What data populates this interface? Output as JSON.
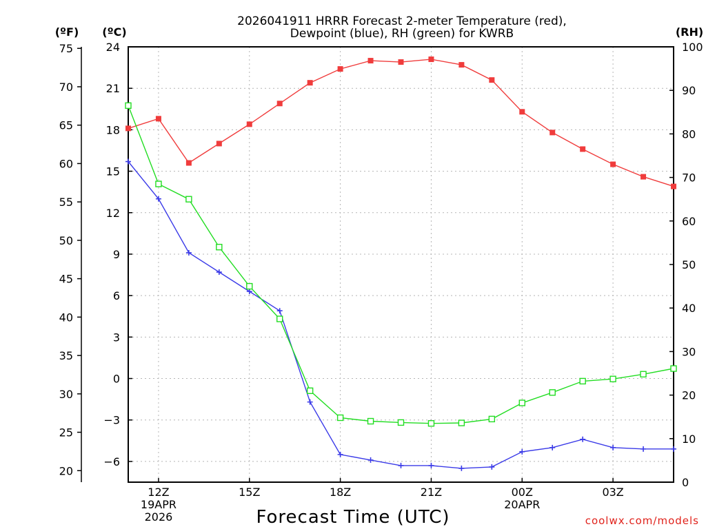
{
  "chart_data": {
    "type": "line",
    "title_line1": "2026041911 HRRR Forecast 2-meter Temperature (red),",
    "title_line2": "Dewpoint (blue), RH (green) for KWRB",
    "axis_units": {
      "f": "(ºF)",
      "c": "(ºC)",
      "rh": "(RH)"
    },
    "xlabel": "Forecast Time (UTC)",
    "credit": "coolwx.com/models",
    "x_hours": [
      11,
      12,
      13,
      14,
      15,
      16,
      17,
      18,
      19,
      20,
      21,
      22,
      23,
      24,
      25,
      26,
      27,
      28,
      29
    ],
    "xlim": [
      11,
      29
    ],
    "x_ticks": [
      {
        "hour": 12,
        "lines": [
          "12Z",
          "19APR",
          "2026"
        ]
      },
      {
        "hour": 15,
        "lines": [
          "15Z"
        ]
      },
      {
        "hour": 18,
        "lines": [
          "18Z"
        ]
      },
      {
        "hour": 21,
        "lines": [
          "21Z"
        ]
      },
      {
        "hour": 24,
        "lines": [
          "00Z",
          "20APR"
        ]
      },
      {
        "hour": 27,
        "lines": [
          "03Z"
        ]
      }
    ],
    "celsius_axis": {
      "ylim": [
        -7.5,
        24
      ],
      "ticks": [
        24,
        21,
        18,
        15,
        12,
        9,
        6,
        3,
        0,
        -3,
        -6
      ]
    },
    "fahrenheit_axis": {
      "ticks": [
        75,
        70,
        65,
        60,
        55,
        50,
        45,
        40,
        35,
        30,
        25,
        20
      ]
    },
    "rh_axis": {
      "ylim": [
        0,
        100
      ],
      "ticks": [
        100,
        90,
        80,
        70,
        60,
        50,
        40,
        30,
        20,
        10,
        0
      ]
    },
    "series": [
      {
        "name": "Temperature",
        "unit": "C",
        "color": "#f03c3c",
        "marker": "filled-square",
        "values": [
          18.1,
          18.8,
          15.6,
          17.0,
          18.4,
          19.9,
          21.4,
          22.4,
          23.0,
          22.9,
          23.1,
          22.7,
          21.6,
          19.3,
          17.8,
          16.6,
          15.5,
          14.6,
          13.9
        ]
      },
      {
        "name": "Dewpoint",
        "unit": "C",
        "color": "#3a3ae8",
        "marker": "plus",
        "values": [
          15.7,
          13.0,
          9.1,
          7.7,
          6.3,
          4.9,
          -1.7,
          -5.5,
          -5.9,
          -6.3,
          -6.3,
          -6.5,
          -6.4,
          -5.3,
          -5.0,
          -4.4,
          -5.0,
          -5.1,
          -5.1
        ]
      },
      {
        "name": "RH",
        "unit": "%",
        "color": "#22dd22",
        "marker": "open-square",
        "values": [
          86.5,
          68.5,
          65.0,
          54.0,
          45.0,
          37.5,
          21.0,
          14.8,
          14.0,
          13.7,
          13.5,
          13.6,
          14.5,
          18.2,
          20.6,
          23.2,
          23.7,
          24.8,
          26.1
        ]
      }
    ]
  }
}
